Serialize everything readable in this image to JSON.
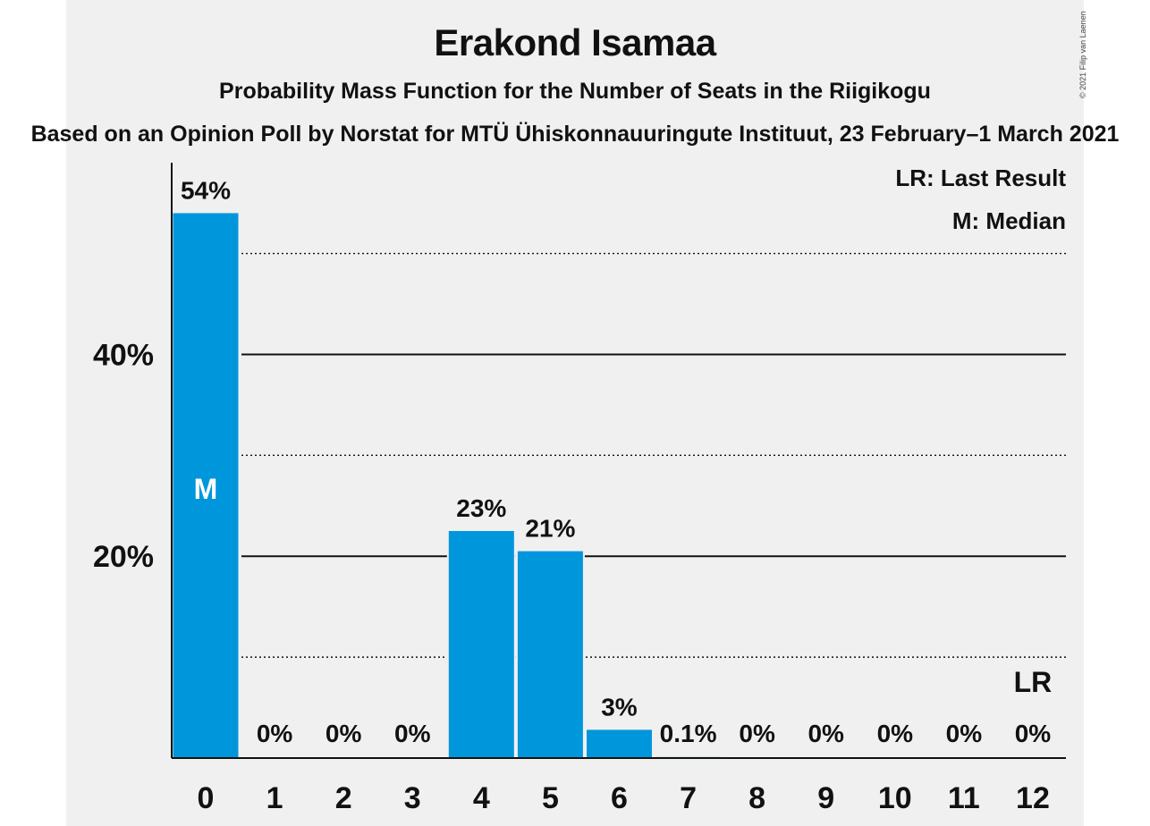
{
  "chart_data": {
    "type": "bar",
    "title": "Erakond Isamaa",
    "subtitle": "Probability Mass Function for the Number of Seats in the Riigikogu",
    "source": "Based on an Opinion Poll by Norstat for MTÜ Ühiskonnauuringute Instituut, 23 February–1 March 2021",
    "copyright": "© 2021 Filip van Laenen",
    "categories": [
      "0",
      "1",
      "2",
      "3",
      "4",
      "5",
      "6",
      "7",
      "8",
      "9",
      "10",
      "11",
      "12"
    ],
    "values": [
      54,
      0,
      0,
      0,
      22.5,
      20.5,
      2.8,
      0.1,
      0,
      0,
      0,
      0,
      0
    ],
    "value_labels": [
      "54%",
      "0%",
      "0%",
      "0%",
      "23%",
      "21%",
      "3%",
      "0.1%",
      "0%",
      "0%",
      "0%",
      "0%",
      "0%"
    ],
    "ylim": [
      0,
      59
    ],
    "yticks_major": [
      20,
      40
    ],
    "ytick_labels": [
      "20%",
      "40%"
    ],
    "yticks_minor": [
      10,
      30,
      50
    ],
    "median_index": 0,
    "median_marker": "M",
    "last_result_index": 12,
    "last_result_marker": "LR",
    "legend": {
      "lr": "LR: Last Result",
      "m": "M: Median",
      "placement": "top-right"
    },
    "colors": {
      "bar": "#0096dc",
      "background": "#f0f0f0",
      "text": "#111111",
      "grid": "#111111"
    }
  }
}
